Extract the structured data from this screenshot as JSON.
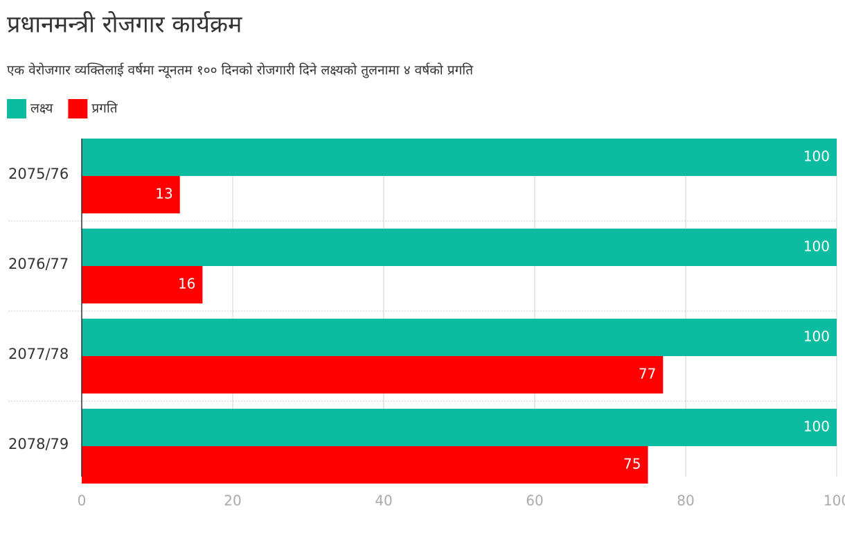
{
  "chart_data": {
    "type": "hbar",
    "title": "प्रधानमन्त्री रोजगार कार्यक्रम",
    "subtitle": "एक वेरोजगार व्यक्तिलाई वर्षमा न्यूनतम १०० दिनको रोजगारी दिने लक्ष्यको तुलनामा ४ वर्षको प्रगति",
    "categories": [
      "2075/76",
      "2076/77",
      "2077/78",
      "2078/79"
    ],
    "series": [
      {
        "name": "लक्ष्य",
        "color": "#0bbca0",
        "values": [
          100,
          100,
          100,
          100
        ]
      },
      {
        "name": "प्रगति",
        "color": "#ff0000",
        "values": [
          13,
          16,
          77,
          75
        ]
      }
    ],
    "xlim": [
      0,
      100
    ],
    "xticks": [
      0,
      20,
      40,
      60,
      80,
      100
    ],
    "grid": true,
    "legend": "top-left"
  }
}
